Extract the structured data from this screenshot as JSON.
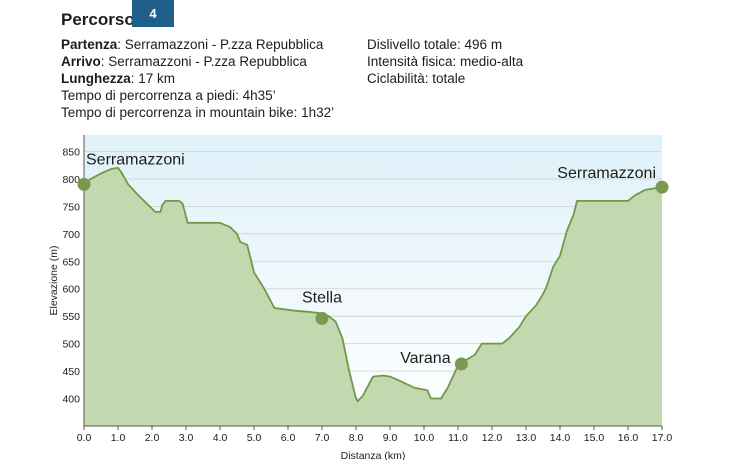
{
  "header": {
    "title": "Percorso",
    "badge": "4"
  },
  "info": {
    "start_label": "Partenza",
    "start_value": ": Serramazzoni - P.zza Repubblica",
    "end_label": "Arrivo",
    "end_value": ": Serramazzoni - P.zza Repubblica",
    "length_label": "Lunghezza",
    "length_value": ": 17 km",
    "walk_time": "Tempo di percorrenza a piedi: 4h35’",
    "bike_time": "Tempo di percorrenza in mountain bike: 1h32’",
    "elevation_gain": "Dislivello totale: 496 m",
    "intensity": "Intensità fisica: medio-alta",
    "cyclability": "Ciclabilità: totale"
  },
  "chart_data": {
    "type": "area",
    "xlabel": "Distanza (km)",
    "ylabel": "Elevazione (m)",
    "xlim": [
      0,
      17
    ],
    "ylim": [
      350,
      880
    ],
    "xticks": [
      "0.0",
      "1.0",
      "2.0",
      "3.0",
      "4.0",
      "5.0",
      "6.0",
      "7.0",
      "8.0",
      "9.0",
      "10.0",
      "11.0",
      "12.0",
      "13.0",
      "14.0",
      "15.0",
      "16.0",
      "17.0"
    ],
    "yticks": [
      "400",
      "450",
      "500",
      "550",
      "600",
      "650",
      "700",
      "750",
      "800",
      "850"
    ],
    "grid": true,
    "colors": {
      "fill": "#c3d8ae",
      "line": "#6f9a48",
      "sky_top": "#dff1f9",
      "sky_bottom": "#ffffff",
      "marker": "#7a9850",
      "grid": "#d0d0d0"
    },
    "profile": {
      "x": [
        0,
        0.2,
        0.5,
        0.8,
        1.0,
        1.1,
        1.3,
        1.6,
        1.9,
        2.1,
        2.25,
        2.3,
        2.4,
        2.8,
        2.9,
        3.05,
        3.6,
        4.0,
        4.3,
        4.5,
        4.6,
        4.8,
        4.9,
        5.0,
        5.3,
        5.6,
        6.2,
        6.6,
        7.0,
        7.2,
        7.4,
        7.6,
        7.8,
        8.0,
        8.05,
        8.2,
        8.5,
        8.8,
        9.0,
        9.3,
        9.7,
        10.1,
        10.2,
        10.5,
        10.7,
        11.0,
        11.1,
        11.5,
        11.7,
        12.3,
        12.5,
        12.8,
        13.0,
        13.3,
        13.5,
        13.6,
        13.8,
        14.0,
        14.2,
        14.4,
        14.5,
        15.0,
        15.5,
        16.0,
        16.2,
        16.5,
        17.0
      ],
      "y": [
        790,
        800,
        810,
        818,
        820,
        812,
        790,
        770,
        752,
        740,
        740,
        752,
        760,
        760,
        755,
        720,
        720,
        720,
        712,
        700,
        685,
        680,
        655,
        630,
        600,
        565,
        560,
        558,
        555,
        550,
        540,
        510,
        450,
        400,
        395,
        405,
        440,
        442,
        440,
        432,
        420,
        415,
        400,
        400,
        420,
        460,
        465,
        480,
        500,
        500,
        510,
        530,
        550,
        570,
        590,
        603,
        640,
        660,
        705,
        735,
        760,
        760,
        760,
        760,
        770,
        780,
        785
      ]
    },
    "waypoints": [
      {
        "name": "Serramazzoni",
        "x": 0.0,
        "y": 790
      },
      {
        "name": "Stella",
        "x": 7.0,
        "y": 546
      },
      {
        "name": "Varana",
        "x": 11.1,
        "y": 463
      },
      {
        "name": "Serramazzoni",
        "x": 17.0,
        "y": 785
      }
    ]
  }
}
